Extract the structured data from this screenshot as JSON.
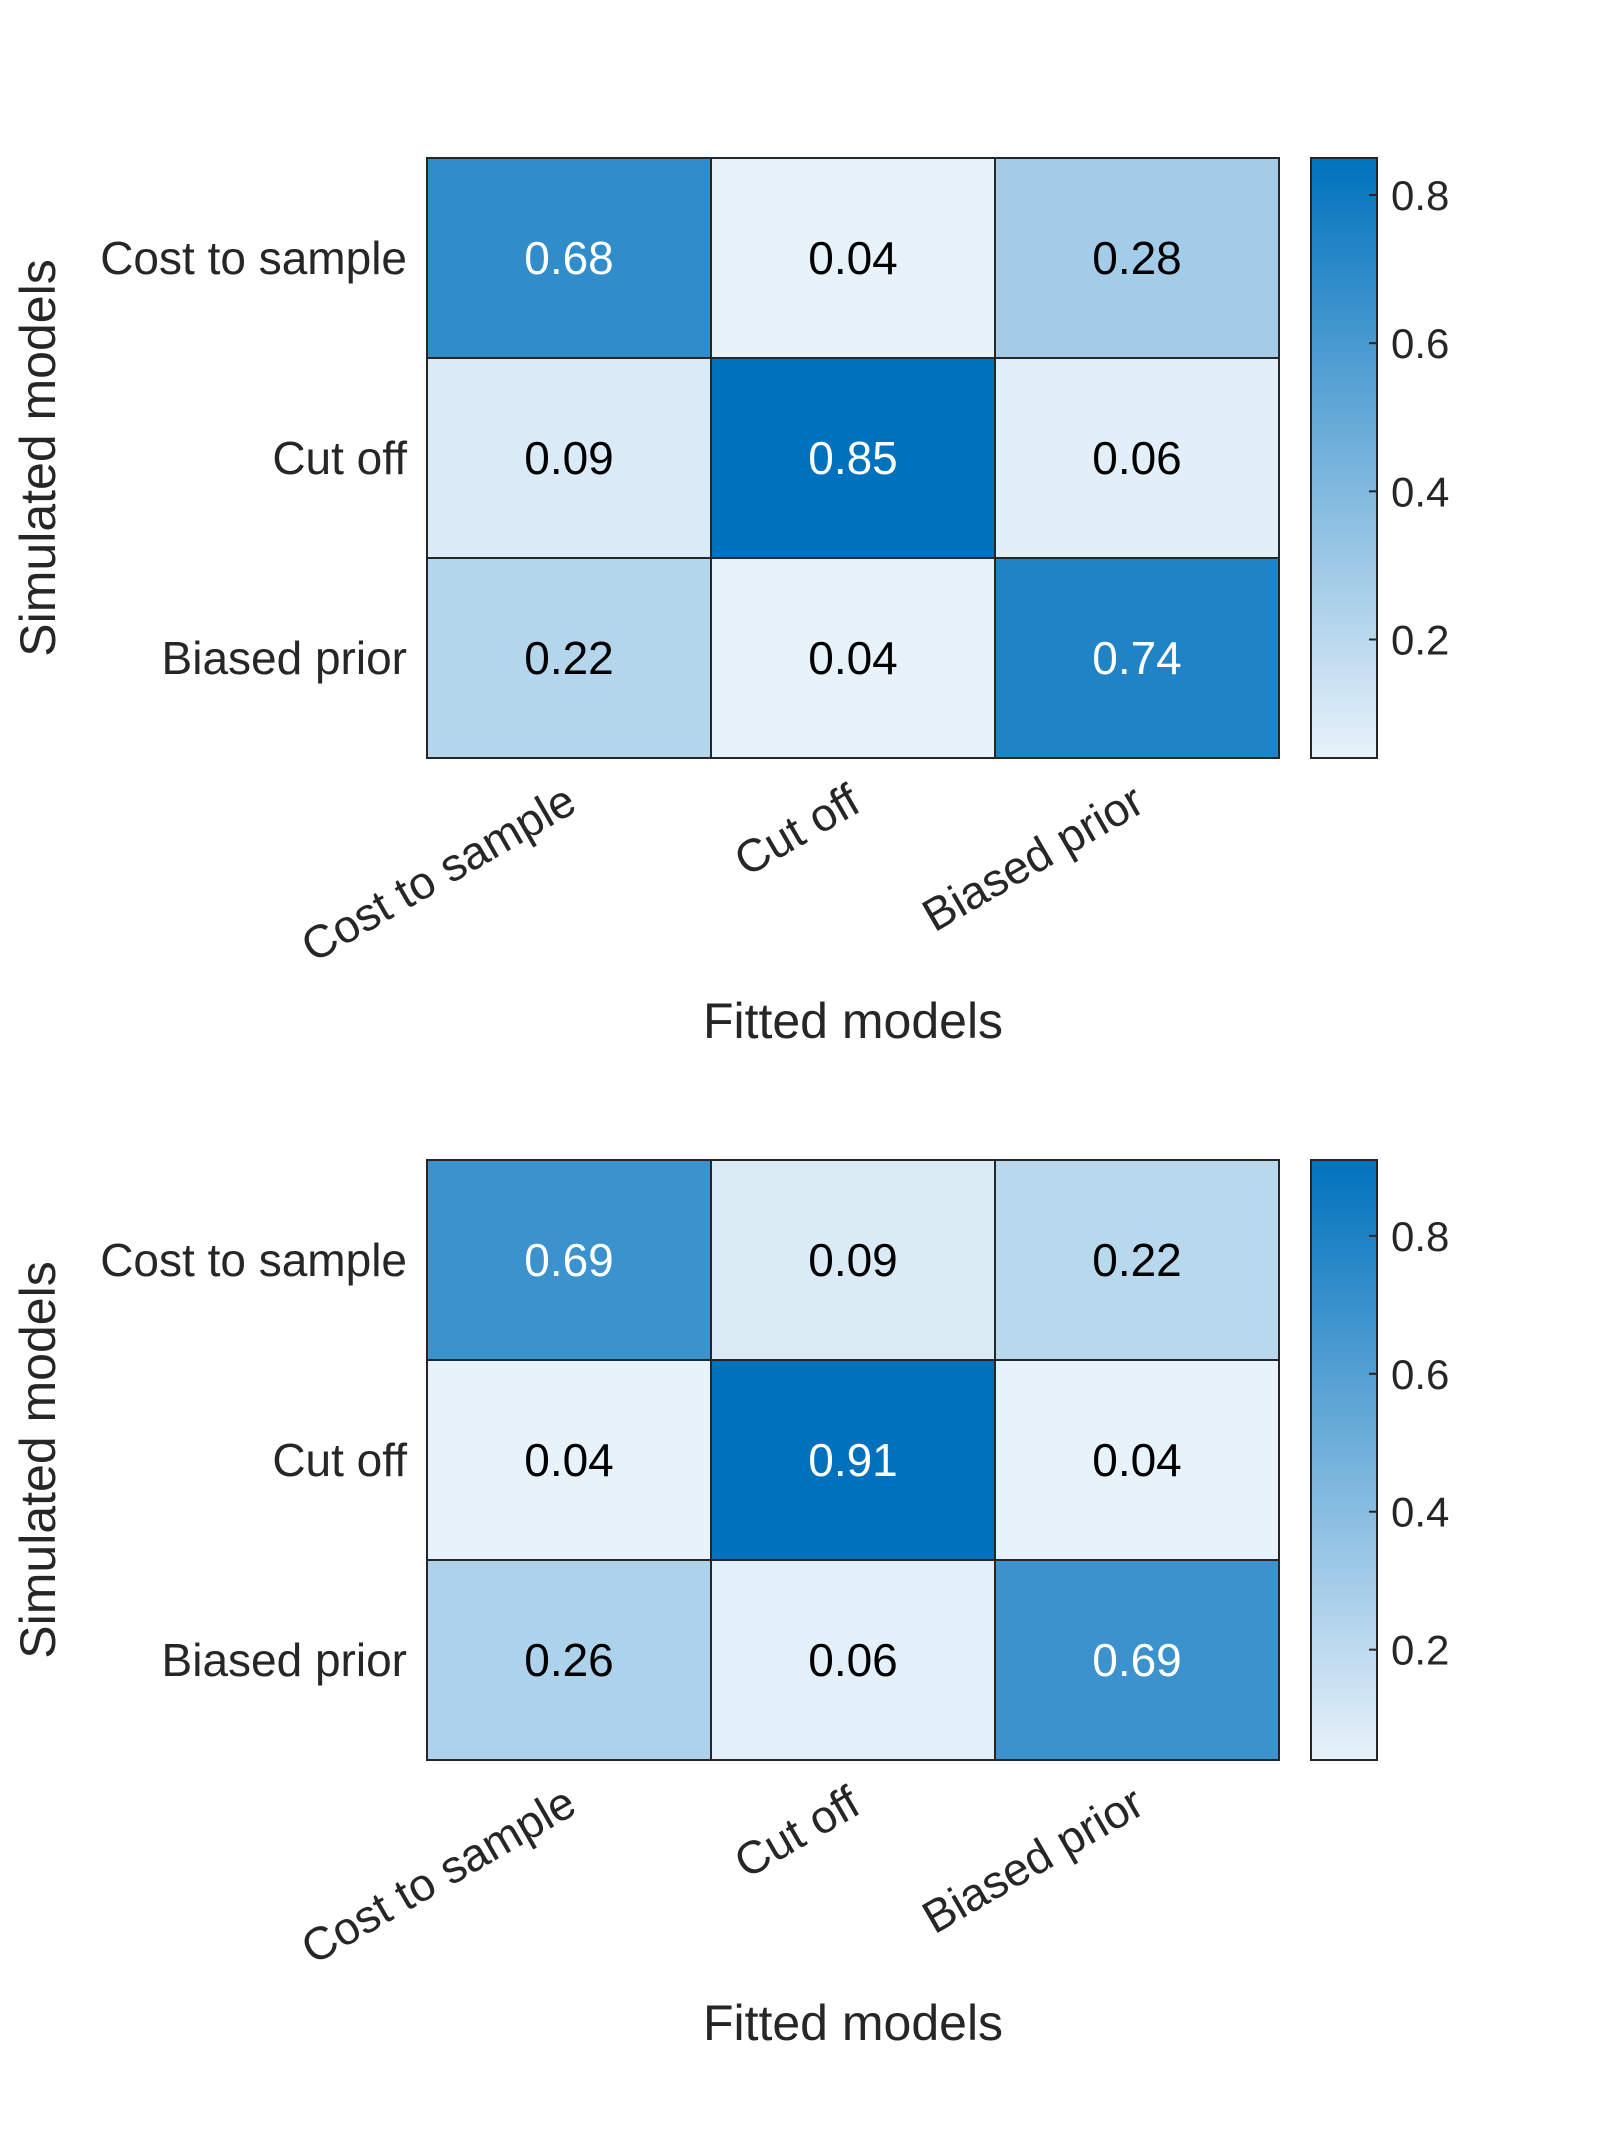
{
  "chart_data": [
    {
      "type": "heatmap",
      "title": "",
      "xlabel": "Fitted models",
      "ylabel": "Simulated models",
      "x_categories": [
        "Cost to sample",
        "Cut off",
        "Biased prior"
      ],
      "y_categories": [
        "Cost to sample",
        "Cut off",
        "Biased prior"
      ],
      "values": [
        [
          0.68,
          0.04,
          0.28
        ],
        [
          0.09,
          0.85,
          0.06
        ],
        [
          0.22,
          0.04,
          0.74
        ]
      ],
      "value_labels": [
        [
          "0.68",
          "0.04",
          "0.28"
        ],
        [
          "0.09",
          "0.85",
          "0.06"
        ],
        [
          "0.22",
          "0.04",
          "0.74"
        ]
      ],
      "colorbar": {
        "range": [
          0.04,
          0.85
        ],
        "ticks": [
          0.2,
          0.4,
          0.6,
          0.8
        ],
        "tick_labels": [
          "0.2",
          "0.4",
          "0.6",
          "0.8"
        ]
      },
      "grid": false,
      "legend": "colorbar-right"
    },
    {
      "type": "heatmap",
      "title": "",
      "xlabel": "Fitted models",
      "ylabel": "Simulated models",
      "x_categories": [
        "Cost to sample",
        "Cut off",
        "Biased prior"
      ],
      "y_categories": [
        "Cost to sample",
        "Cut off",
        "Biased prior"
      ],
      "values": [
        [
          0.69,
          0.09,
          0.22
        ],
        [
          0.04,
          0.91,
          0.04
        ],
        [
          0.26,
          0.06,
          0.69
        ]
      ],
      "value_labels": [
        [
          "0.69",
          "0.09",
          "0.22"
        ],
        [
          "0.04",
          "0.91",
          "0.04"
        ],
        [
          "0.26",
          "0.06",
          "0.69"
        ]
      ],
      "colorbar": {
        "range": [
          0.04,
          0.91
        ],
        "ticks": [
          0.2,
          0.4,
          0.6,
          0.8
        ],
        "tick_labels": [
          "0.2",
          "0.4",
          "0.6",
          "0.8"
        ]
      },
      "grid": false,
      "legend": "colorbar-right"
    }
  ],
  "colors": {
    "low": "#e8f2fa",
    "high": "#0072bd",
    "grid_line": "#262626",
    "text_dark": "#000000",
    "text_light": "#ffffff",
    "axis_text": "#262626"
  },
  "cell_text_threshold": 0.6
}
